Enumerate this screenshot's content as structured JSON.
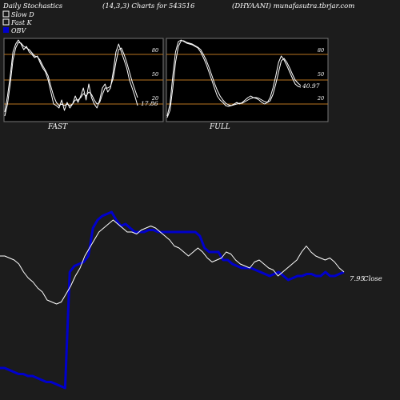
{
  "header": {
    "left": "Daily Stochastics",
    "middle": "(14,3,3) Charts for 543516",
    "right": "(DHYAANI) munafasutra.tbrjar.com"
  },
  "legend": [
    {
      "label": "Slow  D",
      "swatch": "#ffffff",
      "hollow": true
    },
    {
      "label": "Fast K",
      "swatch": "#ffffff",
      "hollow": true
    },
    {
      "label": "OBV",
      "swatch": "#0000cc",
      "hollow": false
    }
  ],
  "colors": {
    "background": "#1c1c1c",
    "panel_bg": "#000000",
    "panel_border": "#777777",
    "level_line": "#b8731f",
    "stoch_line": "#ffffff",
    "obv_line": "#0000cc",
    "close_line": "#ffffff"
  },
  "chart_data": [
    {
      "type": "line",
      "title": "FAST",
      "ylim": [
        0,
        100
      ],
      "levels": [
        20,
        50,
        80
      ],
      "level_labels": [
        "80",
        "50",
        "20"
      ],
      "last_value_label": "17.86",
      "series": [
        {
          "name": "Fast K",
          "values": [
            10,
            30,
            55,
            85,
            95,
            100,
            95,
            88,
            92,
            85,
            82,
            78,
            80,
            72,
            65,
            60,
            50,
            35,
            20,
            18,
            15,
            25,
            12,
            22,
            15,
            20,
            30,
            22,
            30,
            40,
            25,
            45,
            28,
            20,
            15,
            25,
            40,
            45,
            35,
            40,
            60,
            85,
            95,
            85,
            75,
            65,
            50,
            40,
            30,
            18
          ]
        },
        {
          "name": "Slow D",
          "values": [
            5,
            20,
            45,
            75,
            90,
            97,
            96,
            92,
            90,
            88,
            84,
            80,
            79,
            75,
            68,
            62,
            55,
            42,
            30,
            22,
            18,
            20,
            18,
            20,
            18,
            20,
            25,
            25,
            28,
            33,
            30,
            35,
            32,
            25,
            20,
            22,
            32,
            40,
            40,
            42,
            52,
            72,
            88,
            90,
            82,
            72,
            60,
            48,
            38,
            28
          ]
        }
      ]
    },
    {
      "type": "line",
      "title": "FULL",
      "ylim": [
        0,
        100
      ],
      "levels": [
        20,
        50,
        80
      ],
      "level_labels": [
        "80",
        "50",
        "20"
      ],
      "last_value_label": "40.97",
      "series": [
        {
          "name": "Fast K",
          "values": [
            5,
            20,
            55,
            85,
            98,
            100,
            98,
            96,
            95,
            94,
            92,
            90,
            85,
            78,
            70,
            60,
            50,
            40,
            30,
            25,
            22,
            18,
            17,
            18,
            20,
            22,
            20,
            22,
            25,
            28,
            30,
            28,
            27,
            25,
            22,
            20,
            22,
            28,
            40,
            55,
            72,
            80,
            75,
            68,
            60,
            52,
            45,
            42,
            41
          ]
        },
        {
          "name": "Slow D",
          "values": [
            3,
            12,
            40,
            72,
            92,
            99,
            99,
            97,
            96,
            95,
            93,
            91,
            88,
            82,
            75,
            66,
            56,
            46,
            37,
            30,
            25,
            21,
            19,
            18,
            19,
            20,
            21,
            21,
            23,
            25,
            27,
            28,
            28,
            27,
            25,
            23,
            22,
            24,
            32,
            45,
            60,
            74,
            77,
            72,
            65,
            57,
            50,
            46,
            43
          ]
        }
      ]
    },
    {
      "type": "line",
      "ylim": [
        0,
        100
      ],
      "last_value_label": "7.95",
      "last_value_suffix": "Close",
      "series": [
        {
          "name": "OBV",
          "values": [
            12,
            12,
            11,
            10,
            9,
            9,
            8,
            8,
            7,
            6,
            5,
            5,
            4,
            3,
            2,
            60,
            63,
            64,
            65,
            68,
            82,
            86,
            88,
            89,
            90,
            86,
            83,
            84,
            82,
            80,
            80,
            80,
            81,
            81,
            80,
            80,
            80,
            80,
            80,
            80,
            80,
            80,
            80,
            78,
            72,
            70,
            70,
            70,
            66,
            66,
            64,
            63,
            62,
            62,
            62,
            61,
            60,
            59,
            58,
            59,
            60,
            58,
            56,
            57,
            58,
            58,
            59,
            59,
            58,
            58,
            60,
            58,
            58,
            59,
            60
          ]
        },
        {
          "name": "Close",
          "values": [
            68,
            68,
            67,
            66,
            64,
            60,
            57,
            55,
            52,
            50,
            46,
            45,
            44,
            45,
            49,
            53,
            58,
            62,
            68,
            72,
            76,
            80,
            82,
            84,
            86,
            84,
            82,
            80,
            80,
            79,
            81,
            82,
            83,
            82,
            80,
            78,
            76,
            73,
            72,
            70,
            68,
            70,
            72,
            70,
            67,
            65,
            66,
            67,
            70,
            69,
            66,
            64,
            63,
            62,
            65,
            66,
            64,
            62,
            61,
            58,
            60,
            62,
            64,
            66,
            70,
            73,
            70,
            68,
            67,
            66,
            67,
            65,
            62,
            60
          ]
        }
      ]
    }
  ]
}
